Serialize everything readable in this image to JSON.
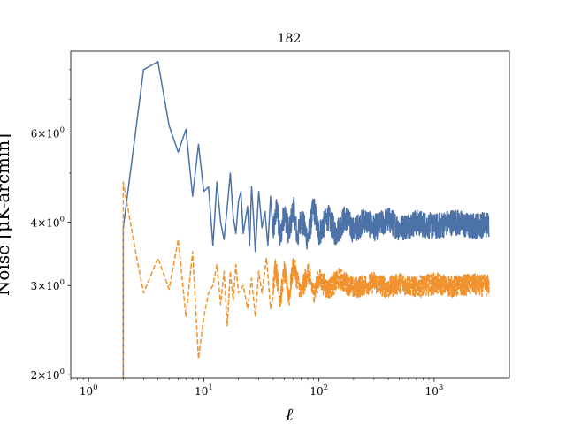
{
  "chart_data": {
    "type": "line",
    "title": "182",
    "xlabel": "ℓ",
    "ylabel": "Noise [μK-arcmin]",
    "xscale": "log",
    "yscale": "log",
    "xlim": [
      0.7,
      4500
    ],
    "ylim": [
      1.97,
      8.7
    ],
    "grid": false,
    "legend": "none",
    "x_ticks": [
      {
        "value": 1,
        "base": "10",
        "exp": "0"
      },
      {
        "value": 10,
        "base": "10",
        "exp": "1"
      },
      {
        "value": 100,
        "base": "10",
        "exp": "2"
      },
      {
        "value": 1000,
        "base": "10",
        "exp": "3"
      }
    ],
    "y_ticks": [
      {
        "value": 2,
        "mantissa": "2",
        "base": "10",
        "exp": "0"
      },
      {
        "value": 3,
        "mantissa": "3",
        "base": "10",
        "exp": "0"
      },
      {
        "value": 4,
        "mantissa": "4",
        "base": "10",
        "exp": "0"
      },
      {
        "value": 6,
        "mantissa": "6",
        "base": "10",
        "exp": "0"
      }
    ],
    "y_minor_ticks": [
      5,
      7,
      8
    ],
    "series": [
      {
        "style": "solid",
        "color": "#4c72a8",
        "points": [
          [
            2,
            1.9
          ],
          [
            2,
            3.9
          ],
          [
            3,
            8.0
          ],
          [
            4,
            8.3
          ],
          [
            5,
            6.2
          ],
          [
            6,
            5.5
          ],
          [
            7,
            6.1
          ],
          [
            8,
            4.5
          ],
          [
            9,
            5.7
          ],
          [
            10,
            4.6
          ],
          [
            11,
            4.7
          ],
          [
            12,
            3.6
          ],
          [
            13,
            4.8
          ],
          [
            14,
            4.0
          ],
          [
            15,
            3.7
          ],
          [
            16,
            4.3
          ],
          [
            17,
            5.0
          ],
          [
            18,
            4.1
          ],
          [
            19,
            3.8
          ],
          [
            20,
            4.4
          ],
          [
            21,
            4.6
          ],
          [
            22,
            3.8
          ],
          [
            24,
            4.3
          ],
          [
            25,
            3.6
          ],
          [
            26,
            4.7
          ],
          [
            27,
            4.1
          ],
          [
            28,
            3.5
          ],
          [
            30,
            4.6
          ],
          [
            32,
            3.9
          ],
          [
            34,
            4.2
          ],
          [
            36,
            3.6
          ],
          [
            38,
            4.5
          ],
          [
            40,
            3.8
          ],
          [
            43,
            4.3
          ],
          [
            46,
            3.7
          ],
          [
            50,
            4.2
          ],
          [
            55,
            3.8
          ],
          [
            60,
            4.3
          ],
          [
            65,
            3.7
          ],
          [
            70,
            4.1
          ],
          [
            80,
            3.7
          ],
          [
            90,
            4.3
          ],
          [
            100,
            3.8
          ],
          [
            120,
            4.1
          ],
          [
            140,
            3.8
          ],
          [
            170,
            4.1
          ],
          [
            200,
            3.85
          ],
          [
            250,
            4.05
          ],
          [
            300,
            3.9
          ],
          [
            400,
            4.05
          ],
          [
            500,
            3.9
          ],
          [
            700,
            4.0
          ],
          [
            1000,
            3.92
          ],
          [
            1500,
            4.02
          ],
          [
            2000,
            3.93
          ],
          [
            3000,
            3.97
          ]
        ],
        "noise_from": 40,
        "noise_amp": 0.06
      },
      {
        "style": "dashed",
        "color": "#f0922e",
        "points": [
          [
            2,
            1.9
          ],
          [
            2,
            4.8
          ],
          [
            2.5,
            3.6
          ],
          [
            3,
            2.9
          ],
          [
            4,
            3.4
          ],
          [
            5,
            2.95
          ],
          [
            6,
            3.7
          ],
          [
            7,
            2.6
          ],
          [
            8,
            3.5
          ],
          [
            9,
            2.15
          ],
          [
            10,
            2.6
          ],
          [
            11,
            2.9
          ],
          [
            12,
            3.0
          ],
          [
            13,
            3.3
          ],
          [
            14,
            2.75
          ],
          [
            15,
            3.2
          ],
          [
            16,
            2.5
          ],
          [
            17,
            3.2
          ],
          [
            18,
            2.8
          ],
          [
            19,
            3.3
          ],
          [
            20,
            2.9
          ],
          [
            22,
            3.0
          ],
          [
            24,
            2.7
          ],
          [
            26,
            3.1
          ],
          [
            28,
            2.6
          ],
          [
            30,
            3.2
          ],
          [
            32,
            2.9
          ],
          [
            35,
            3.4
          ],
          [
            38,
            2.7
          ],
          [
            42,
            3.3
          ],
          [
            46,
            2.8
          ],
          [
            50,
            3.2
          ],
          [
            55,
            2.85
          ],
          [
            60,
            3.3
          ],
          [
            70,
            2.9
          ],
          [
            80,
            3.2
          ],
          [
            90,
            2.9
          ],
          [
            100,
            3.1
          ],
          [
            120,
            2.95
          ],
          [
            150,
            3.1
          ],
          [
            200,
            2.97
          ],
          [
            300,
            3.05
          ],
          [
            400,
            2.97
          ],
          [
            500,
            3.04
          ],
          [
            700,
            2.98
          ],
          [
            1000,
            3.03
          ],
          [
            1500,
            2.99
          ],
          [
            2000,
            3.02
          ],
          [
            3000,
            3.0
          ]
        ],
        "noise_from": 40,
        "noise_amp": 0.05
      }
    ]
  }
}
